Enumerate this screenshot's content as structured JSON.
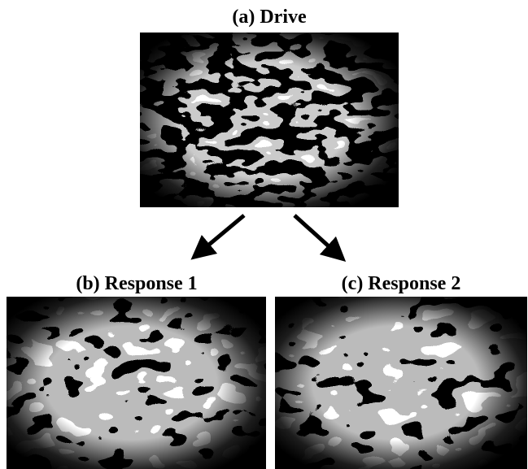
{
  "panels": [
    {
      "label": "(a) Drive"
    },
    {
      "label": "(b) Response 1"
    },
    {
      "label": "(c) Response 2"
    }
  ]
}
